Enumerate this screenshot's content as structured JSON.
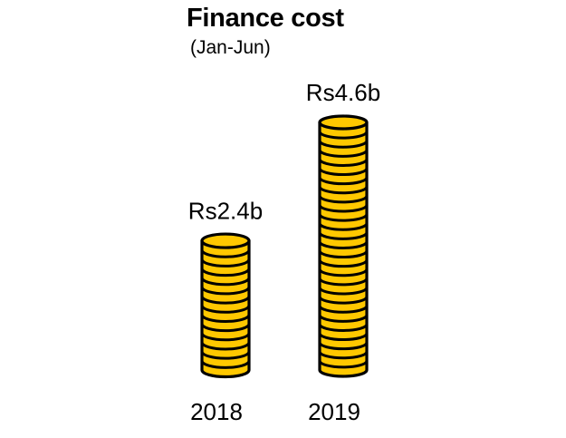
{
  "chart_data": {
    "type": "bar",
    "title": "Finance cost",
    "subtitle": "(Jan-Jun)",
    "categories": [
      "2018",
      "2019"
    ],
    "values": [
      2.4,
      4.6
    ],
    "value_labels": [
      "Rs2.4b",
      "Rs4.6b"
    ],
    "unit": "Rs billion",
    "bar_style": "stacked-coins",
    "colors": {
      "coin_fill": "#FFC800",
      "coin_outline": "#000000"
    },
    "xlabel": "",
    "ylabel": "",
    "grid": false,
    "legend": "none"
  }
}
